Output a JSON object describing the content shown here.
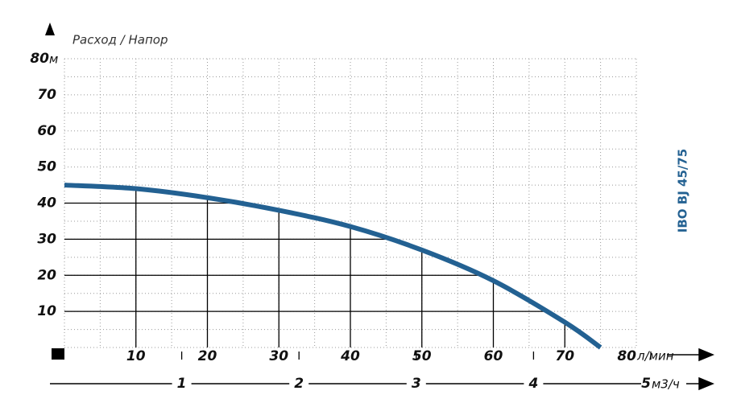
{
  "chart_data": {
    "type": "line",
    "title": "Расход / Напор",
    "model": "IBO BJ 45/75",
    "x_unit": "л/мин",
    "y_unit": "м",
    "x2_unit": "м3/ч",
    "x": [
      0,
      10,
      20,
      30,
      40,
      50,
      60,
      70,
      75
    ],
    "series": [
      {
        "name": "IBO BJ 45/75",
        "color": "#236192",
        "values": [
          45,
          44,
          41.5,
          38,
          33.5,
          27,
          18.5,
          7,
          0
        ]
      }
    ],
    "xlim": [
      0,
      80
    ],
    "xticks": [
      10,
      20,
      30,
      40,
      50,
      60,
      70,
      80
    ],
    "ylim": [
      0,
      80
    ],
    "yticks": [
      10,
      20,
      30,
      40,
      50,
      60,
      70,
      80
    ],
    "x2lim": [
      0,
      5
    ],
    "x2ticks": [
      1,
      2,
      3,
      4,
      5
    ],
    "grid": true
  }
}
